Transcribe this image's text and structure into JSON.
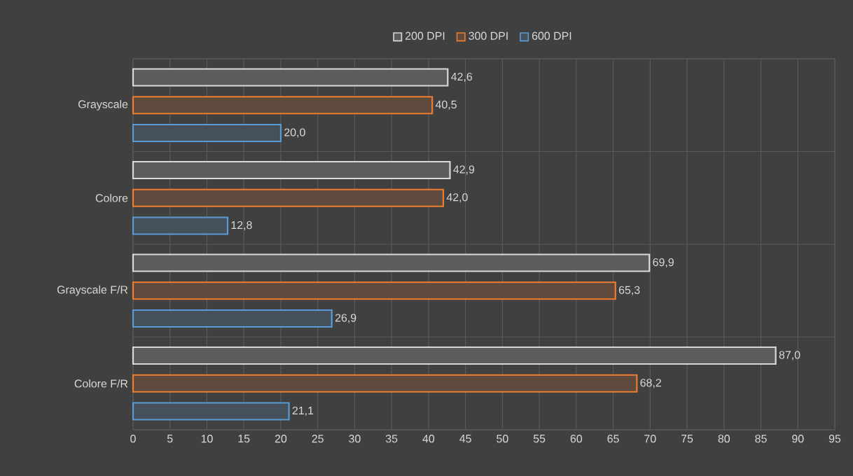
{
  "chart_data": {
    "type": "bar",
    "orientation": "horizontal",
    "categories": [
      "Grayscale",
      "Colore",
      "Grayscale F/R",
      "Colore F/R"
    ],
    "series": [
      {
        "name": "200 DPI",
        "color": "#d9d9d9",
        "values": [
          42.6,
          42.9,
          69.9,
          87.0
        ],
        "value_labels": [
          "42,6",
          "42,9",
          "69,9",
          "87,0"
        ]
      },
      {
        "name": "300 DPI",
        "color": "#ed7d31",
        "values": [
          40.5,
          42.0,
          65.3,
          68.2
        ],
        "value_labels": [
          "40,5",
          "42,0",
          "65,3",
          "68,2"
        ]
      },
      {
        "name": "600 DPI",
        "color": "#5b9bd5",
        "values": [
          20.0,
          12.8,
          26.9,
          21.1
        ],
        "value_labels": [
          "20,0",
          "12,8",
          "26,9",
          "21,1"
        ]
      }
    ],
    "xlim": [
      0,
      95
    ],
    "xticks": [
      0,
      5,
      10,
      15,
      20,
      25,
      30,
      35,
      40,
      45,
      50,
      55,
      60,
      65,
      70,
      75,
      80,
      85,
      90,
      95
    ],
    "grid": true,
    "legend": "top"
  }
}
